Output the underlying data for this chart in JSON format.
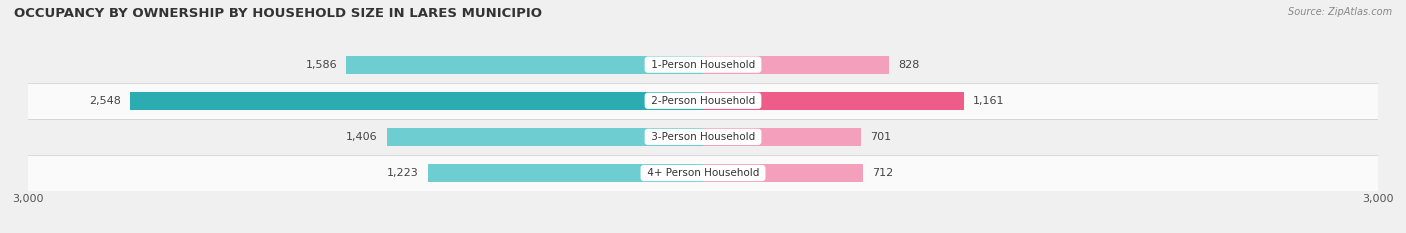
{
  "title": "OCCUPANCY BY OWNERSHIP BY HOUSEHOLD SIZE IN LARES MUNICIPIO",
  "source": "Source: ZipAtlas.com",
  "categories": [
    "1-Person Household",
    "2-Person Household",
    "3-Person Household",
    "4+ Person Household"
  ],
  "owner_values": [
    1586,
    2548,
    1406,
    1223
  ],
  "renter_values": [
    828,
    1161,
    701,
    712
  ],
  "max_val": 3000,
  "owner_color_normal": "#6dcdd0",
  "owner_color_highlight": "#2aacb0",
  "renter_color_normal": "#f4a0bc",
  "renter_color_highlight": "#ee5c8a",
  "row_bg_even": "#f0f0f0",
  "row_bg_odd": "#fafafa",
  "highlight_row": 1,
  "title_fontsize": 9.5,
  "source_fontsize": 7,
  "tick_fontsize": 8,
  "legend_fontsize": 8,
  "bar_label_fontsize": 8,
  "category_label_fontsize": 7.5
}
